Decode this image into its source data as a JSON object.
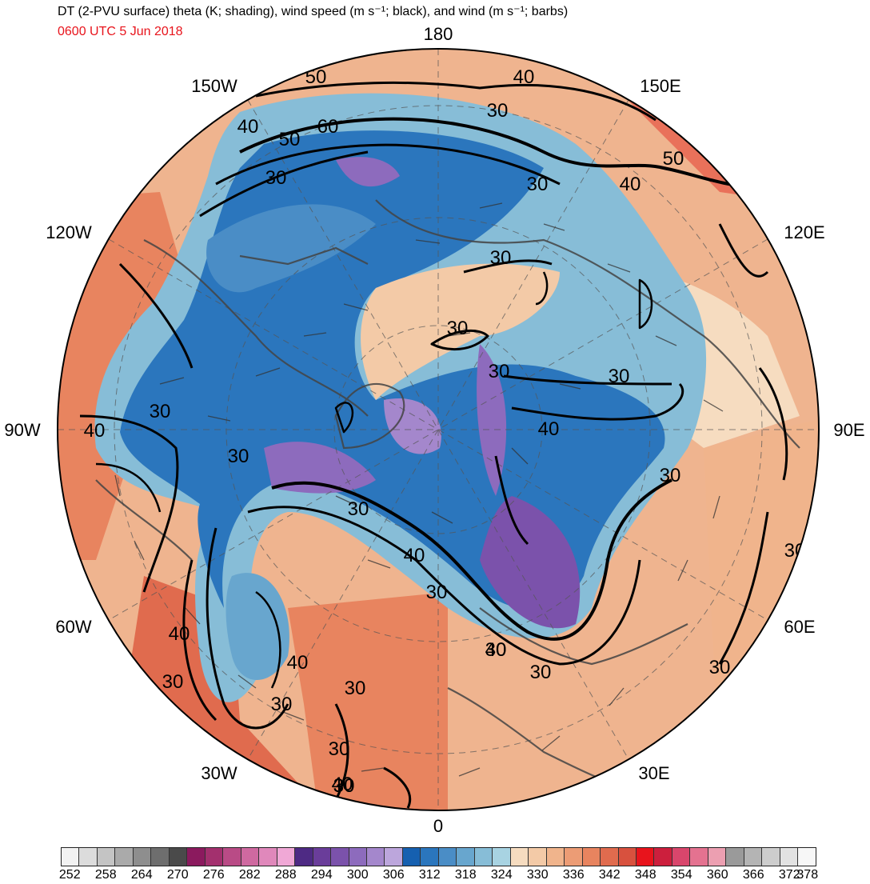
{
  "header": {
    "title": "DT (2-PVU surface) theta (K; shading), wind speed (m s⁻¹; black), and wind (m s⁻¹; barbs)",
    "valid_time": "0600 UTC 5 Jun 2018",
    "valid_time_color": "#e8141c"
  },
  "map": {
    "projection": "north-polar-stereographic",
    "longitude_labels": {
      "top": "180",
      "bottom": "0",
      "left": "90W",
      "right": "90E",
      "w150": "150W",
      "e150": "150E",
      "w120": "120W",
      "e120": "120E",
      "w60": "60W",
      "e60": "60E",
      "w30": "30W",
      "e30": "30E"
    },
    "wind_speed_contour_labels": [
      "50",
      "40",
      "30",
      "40",
      "50",
      "60",
      "30",
      "30",
      "40",
      "50",
      "30",
      "30",
      "30",
      "30",
      "40",
      "30",
      "40",
      "30",
      "30",
      "30",
      "30",
      "40",
      "30",
      "40",
      "30",
      "30",
      "40",
      "30",
      "30",
      "40",
      "30",
      "30",
      "30",
      "40",
      "30",
      "30"
    ],
    "colors": {
      "cold_core": "#2166ac",
      "warm_edge": "#e34a33",
      "coldest": "#8c6bb1",
      "contours": "#000000",
      "coastlines": "#444444"
    }
  },
  "colorbar": {
    "units": "K",
    "tick_labels": [
      "252",
      "258",
      "264",
      "270",
      "276",
      "282",
      "288",
      "294",
      "300",
      "306",
      "312",
      "318",
      "324",
      "330",
      "336",
      "342",
      "348",
      "354",
      "360",
      "366",
      "372",
      "378"
    ],
    "boxes": [
      "#f2f2f2",
      "#dcdcdc",
      "#c4c4c4",
      "#aaaaaa",
      "#8e8e8e",
      "#6e6e6e",
      "#4a4a4a",
      "#8b1a5e",
      "#a3306e",
      "#b94b86",
      "#cf69a0",
      "#e088bb",
      "#f0a8d6",
      "#4e2a84",
      "#6a3d9a",
      "#7b52ab",
      "#8d6bbd",
      "#a487cc",
      "#bca6dc",
      "#1660b0",
      "#2b76bd",
      "#4a8dc6",
      "#68a6ce",
      "#87bdd7",
      "#a8d3e2",
      "#f6dcc0",
      "#f3caa7",
      "#f0b48c",
      "#ec9c75",
      "#e8845f",
      "#e06b4e",
      "#d8513e",
      "#e8141c",
      "#cc1f3d",
      "#d9466c",
      "#e47290",
      "#ec9fb1",
      "#9a9a9a",
      "#b4b4b4",
      "#cdcdcd",
      "#e2e2e2",
      "#f7f7f7"
    ]
  }
}
